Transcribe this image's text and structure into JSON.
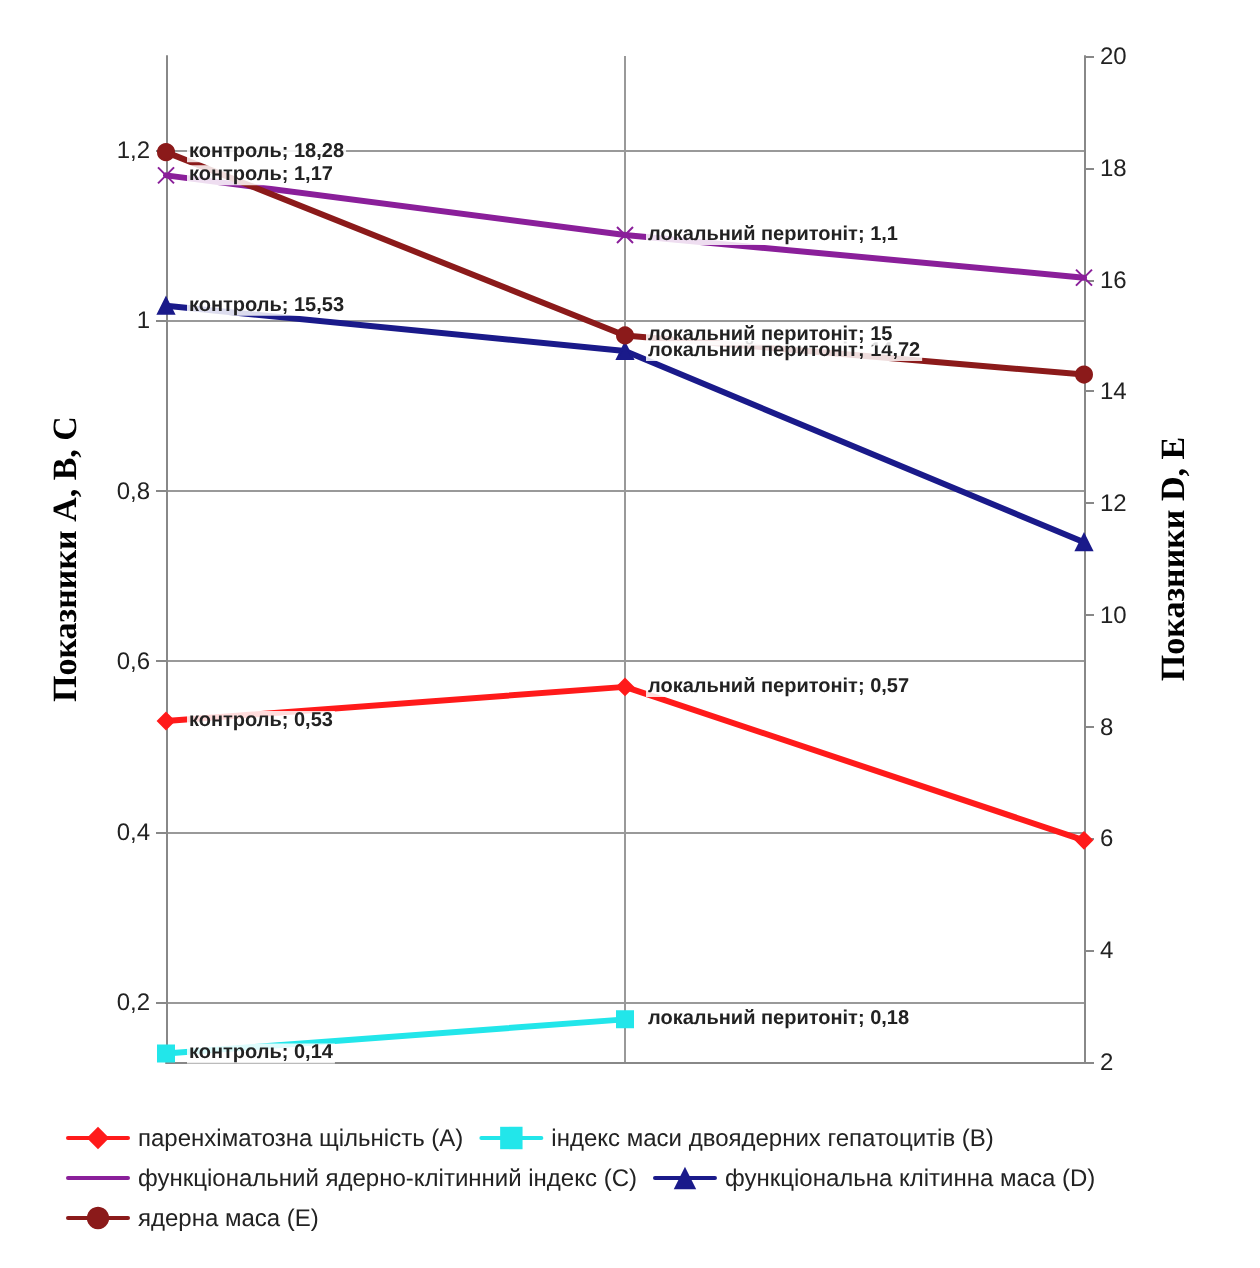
{
  "chart_data": {
    "type": "line",
    "ylabel": "Показники A, B, C",
    "y2label": "Показники D, E",
    "categories": [
      null,
      null,
      null
    ],
    "ylim": [
      0.13,
      1.31
    ],
    "yticks": [
      {
        "value": 0.2,
        "label": "0,2"
      },
      {
        "value": 0.4,
        "label": "0,4"
      },
      {
        "value": 0.6,
        "label": "0,6"
      },
      {
        "value": 0.8,
        "label": "0,8"
      },
      1,
      {
        "value": 1.2,
        "label": "1,2"
      }
    ],
    "y2lim": [
      2,
      20
    ],
    "y2ticks": [
      2,
      4,
      6,
      8,
      10,
      12,
      14,
      16,
      18,
      20
    ],
    "grid": true,
    "legend": "bottom",
    "series": [
      {
        "name": "паренхіматозна щільність (A)",
        "color": "#ff1a1a",
        "marker": "diamond",
        "values": [
          0.53,
          0.57,
          0.39
        ],
        "value_labels": [
          "контроль; 0,53",
          "локальний перитоніт; 0,57",
          null
        ]
      },
      {
        "name": "індекс маси двоядерних гепатоцитів (B)",
        "color": "#22e6ea",
        "marker": "square",
        "values": [
          0.14,
          0.18,
          null
        ],
        "value_labels": [
          "контроль; 0,14",
          "локальний перитоніт; 0,18",
          null
        ]
      },
      {
        "name": "функціональний ядерно-клітинний індекс (C)",
        "color": "#8a1f9a",
        "marker": "cross",
        "values": [
          1.17,
          1.1,
          1.05
        ],
        "value_labels": [
          "контроль; 1,17",
          "локальний перитоніт; 1,1",
          null
        ]
      },
      {
        "name": "функціональна клітинна маса (D)",
        "color": "#1a1a8a",
        "marker": "triangle",
        "axis": "y2",
        "values": [
          15.53,
          14.72,
          11.3
        ],
        "value_labels": [
          "контроль; 15,53",
          "локальний перитоніт; 14,72",
          null
        ]
      },
      {
        "name": "ядерна маса (E)",
        "color": "#8b1a1a",
        "marker": "circle",
        "axis": "y2",
        "values": [
          18.28,
          15,
          14.3
        ],
        "value_labels": [
          "контроль; 18,28",
          "локальний перитоніт; 15",
          null
        ]
      }
    ]
  }
}
